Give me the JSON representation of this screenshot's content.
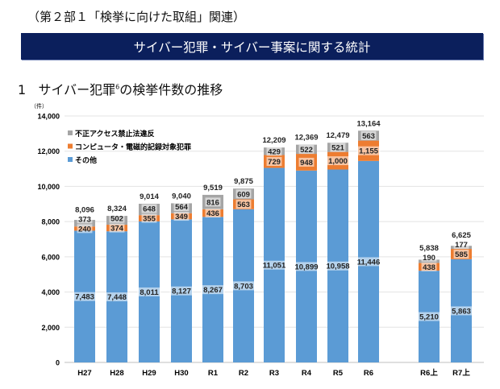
{
  "section_heading": "（第２部１「検挙に向けた取組」関連）",
  "banner_title": "サイバー犯罪・サイバー事案に関する統計",
  "chart_heading": {
    "number": "1",
    "text": "サイバー犯罪",
    "footnote": "6",
    "text_after": "の検挙件数の推移"
  },
  "chart_data": {
    "type": "bar",
    "stacked": true,
    "ylabel": "（件）",
    "ylim": [
      0,
      14000
    ],
    "yticks": [
      "0",
      "2,000",
      "4,000",
      "6,000",
      "8,000",
      "10,000",
      "12,000",
      "14,000"
    ],
    "grid": true,
    "legend_position": "top-left",
    "categories": [
      "H27",
      "H28",
      "H29",
      "H30",
      "R1",
      "R2",
      "R3",
      "R4",
      "R5",
      "R6",
      "R6上",
      "R7上"
    ],
    "series": [
      {
        "name": "その他",
        "color": "#5b9bd5",
        "values": [
          7483,
          7448,
          8011,
          8127,
          8267,
          8703,
          11051,
          10899,
          10958,
          11446,
          5210,
          5863
        ],
        "labels": [
          "7,483",
          "7,448",
          "8,011",
          "8,127",
          "8,267",
          "8,703",
          "11,051",
          "10,899",
          "10,958",
          "11,446",
          "5,210",
          "5,863"
        ]
      },
      {
        "name": "コンピュータ・電磁的記録対象犯罪",
        "color": "#ed7d31",
        "values": [
          240,
          374,
          355,
          349,
          436,
          563,
          729,
          948,
          1000,
          1155,
          438,
          585
        ],
        "labels": [
          "240",
          "374",
          "355",
          "349",
          "436",
          "563",
          "729",
          "948",
          "1,000",
          "1,155",
          "438",
          "585"
        ]
      },
      {
        "name": "不正アクセス禁止法違反",
        "color": "#a5a5a5",
        "values": [
          373,
          502,
          648,
          564,
          816,
          609,
          429,
          522,
          521,
          563,
          190,
          177
        ],
        "labels": [
          "373",
          "502",
          "648",
          "564",
          "816",
          "609",
          "429",
          "522",
          "521",
          "563",
          "190",
          "177"
        ]
      }
    ],
    "totals": [
      8096,
      8324,
      9014,
      9040,
      9519,
      9875,
      12209,
      12369,
      12479,
      13164,
      5838,
      6625
    ],
    "total_labels": [
      "8,096",
      "8,324",
      "9,014",
      "9,040",
      "9,519",
      "9,875",
      "12,209",
      "12,369",
      "12,479",
      "13,164",
      "5,838",
      "6,625"
    ]
  }
}
